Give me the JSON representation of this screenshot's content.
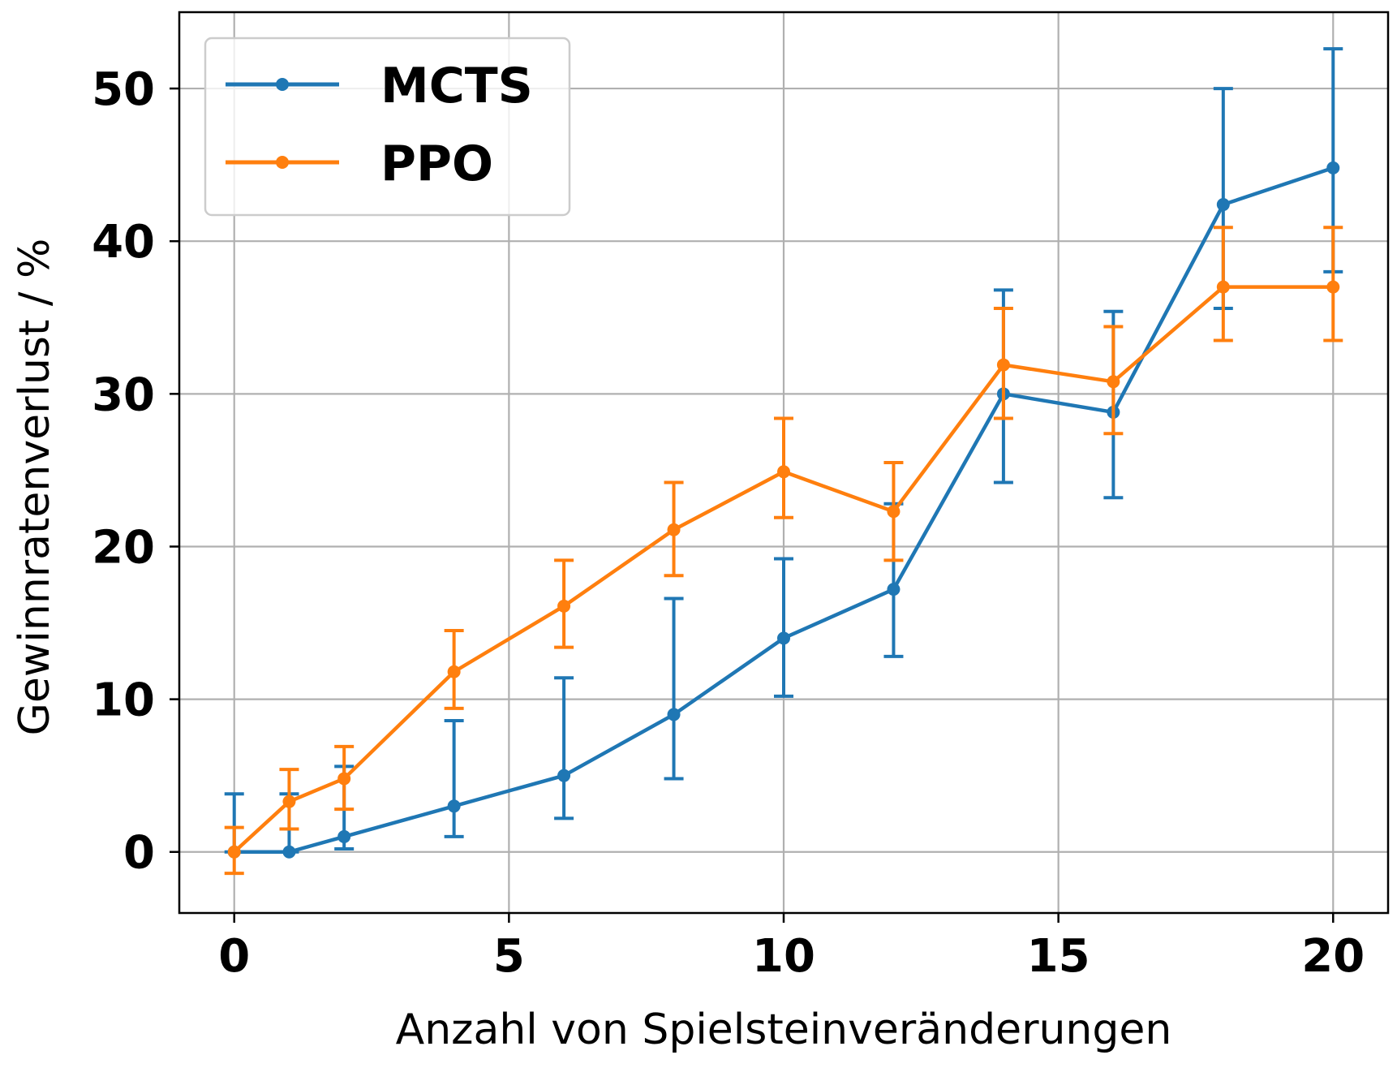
{
  "chart_data": {
    "type": "line",
    "xlabel": "Anzahl von Spielsteinveränderungen",
    "ylabel": "Gewinnratenverlust / %",
    "xlim": [
      -1,
      21
    ],
    "ylim": [
      -4,
      55
    ],
    "xticks": [
      0,
      5,
      10,
      15,
      20
    ],
    "yticks": [
      0,
      10,
      20,
      30,
      40,
      50
    ],
    "grid": true,
    "legend": "top-left",
    "series": [
      {
        "name": "MCTS",
        "color": "#1f77b4",
        "x": [
          0,
          1,
          2,
          4,
          6,
          8,
          10,
          12,
          14,
          16,
          18,
          20
        ],
        "y": [
          0,
          0,
          1.0,
          3.0,
          5.0,
          9.0,
          14.0,
          17.2,
          30.0,
          28.8,
          42.4,
          44.8
        ],
        "err_low": [
          0,
          0,
          0.2,
          1.0,
          2.2,
          4.8,
          10.2,
          12.8,
          24.2,
          23.2,
          35.6,
          38.0
        ],
        "err_high": [
          3.8,
          3.8,
          5.6,
          8.6,
          11.4,
          16.6,
          19.2,
          22.8,
          36.8,
          35.4,
          50.0,
          52.6
        ]
      },
      {
        "name": "PPO",
        "color": "#ff7f0e",
        "x": [
          0,
          1,
          2,
          4,
          6,
          8,
          10,
          12,
          14,
          16,
          18,
          20
        ],
        "y": [
          0,
          3.3,
          4.8,
          11.8,
          16.1,
          21.1,
          24.9,
          22.3,
          31.9,
          30.8,
          37.0,
          37.0
        ],
        "err_low": [
          -1.4,
          1.5,
          2.8,
          9.4,
          13.4,
          18.1,
          21.9,
          19.1,
          28.4,
          27.4,
          33.5,
          33.5
        ],
        "err_high": [
          1.6,
          5.4,
          6.9,
          14.5,
          19.1,
          24.2,
          28.4,
          25.5,
          35.6,
          34.4,
          40.9,
          40.9
        ]
      }
    ]
  }
}
